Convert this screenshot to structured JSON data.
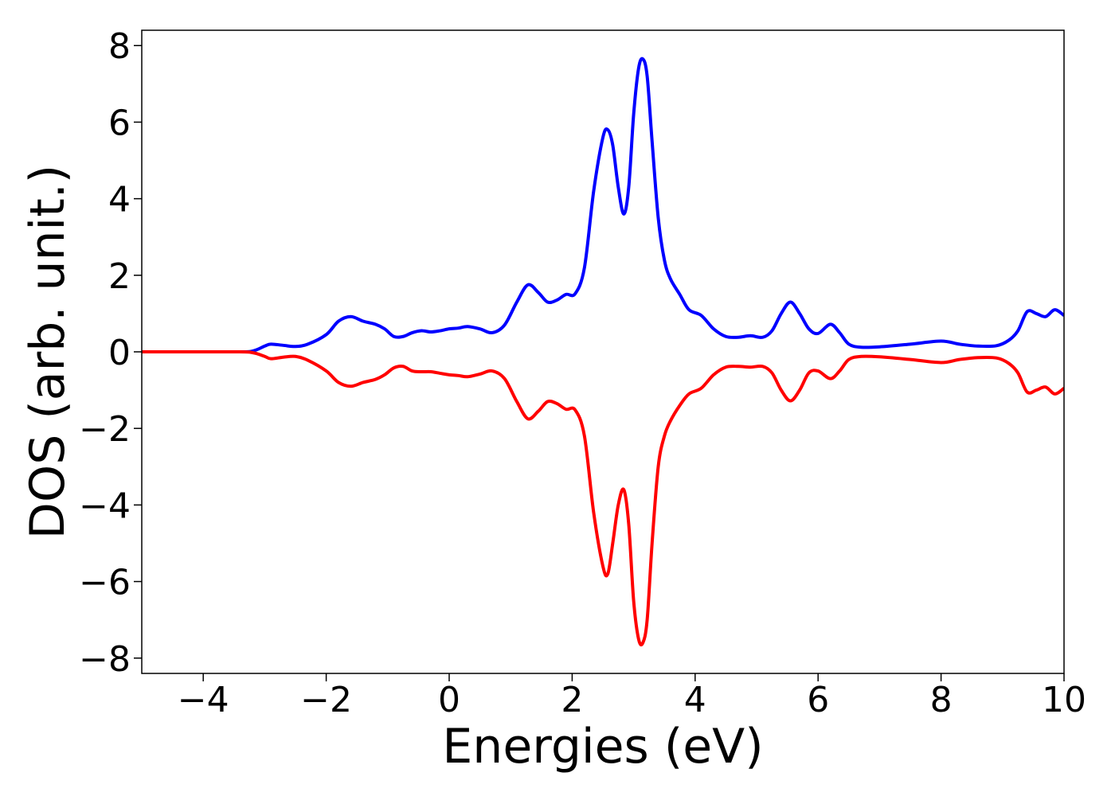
{
  "chart_data": {
    "type": "line",
    "title": "",
    "xlabel": "Energies (eV)",
    "ylabel": "DOS (arb. unit.)",
    "xlim": [
      -5,
      10
    ],
    "ylim": [
      -8.4,
      8.4
    ],
    "grid": false,
    "legend": "none",
    "x_ticks": [
      -4,
      -2,
      0,
      2,
      4,
      6,
      8,
      10
    ],
    "x_tick_labels": [
      "−4",
      "−2",
      "0",
      "2",
      "4",
      "6",
      "8",
      "10"
    ],
    "y_ticks": [
      8,
      6,
      4,
      2,
      0,
      -2,
      -4,
      -6,
      -8
    ],
    "y_tick_labels": [
      "8",
      "6",
      "4",
      "2",
      "0",
      "−2",
      "−4",
      "−6",
      "−8"
    ],
    "series": [
      {
        "color": "#0000ff",
        "x": [
          -5,
          -3.5,
          -3.2,
          -3.0,
          -2.9,
          -2.7,
          -2.5,
          -2.3,
          -2.0,
          -1.8,
          -1.6,
          -1.4,
          -1.2,
          -1.05,
          -0.9,
          -0.75,
          -0.6,
          -0.45,
          -0.3,
          -0.15,
          0.0,
          0.15,
          0.3,
          0.5,
          0.7,
          0.9,
          1.1,
          1.28,
          1.45,
          1.6,
          1.75,
          1.9,
          2.05,
          2.2,
          2.35,
          2.5,
          2.58,
          2.66,
          2.75,
          2.84,
          2.92,
          3.0,
          3.08,
          3.15,
          3.22,
          3.3,
          3.4,
          3.5,
          3.6,
          3.75,
          3.9,
          4.1,
          4.3,
          4.5,
          4.7,
          4.9,
          5.1,
          5.25,
          5.4,
          5.55,
          5.7,
          5.85,
          6.0,
          6.2,
          6.35,
          6.5,
          6.7,
          7.0,
          7.5,
          8.0,
          8.3,
          8.6,
          8.9,
          9.1,
          9.25,
          9.4,
          9.55,
          9.7,
          9.85,
          10.0
        ],
        "y": [
          0,
          0,
          0.02,
          0.15,
          0.2,
          0.17,
          0.14,
          0.2,
          0.45,
          0.8,
          0.92,
          0.8,
          0.72,
          0.6,
          0.4,
          0.4,
          0.5,
          0.55,
          0.52,
          0.55,
          0.6,
          0.62,
          0.66,
          0.6,
          0.5,
          0.7,
          1.3,
          1.75,
          1.55,
          1.3,
          1.35,
          1.5,
          1.52,
          2.2,
          4.2,
          5.6,
          5.8,
          5.4,
          4.3,
          3.6,
          4.3,
          6.2,
          7.4,
          7.65,
          7.2,
          5.5,
          3.5,
          2.4,
          1.9,
          1.5,
          1.1,
          0.95,
          0.6,
          0.4,
          0.38,
          0.42,
          0.38,
          0.55,
          1.0,
          1.3,
          1.0,
          0.6,
          0.48,
          0.72,
          0.5,
          0.2,
          0.12,
          0.13,
          0.2,
          0.28,
          0.2,
          0.15,
          0.16,
          0.3,
          0.55,
          1.05,
          1.0,
          0.92,
          1.1,
          0.95
        ]
      },
      {
        "color": "#ff0000",
        "x": [
          -5,
          -3.5,
          -3.2,
          -3.0,
          -2.9,
          -2.7,
          -2.5,
          -2.3,
          -2.0,
          -1.8,
          -1.6,
          -1.4,
          -1.2,
          -1.05,
          -0.9,
          -0.75,
          -0.6,
          -0.45,
          -0.3,
          -0.15,
          0.0,
          0.15,
          0.3,
          0.5,
          0.7,
          0.9,
          1.1,
          1.28,
          1.45,
          1.6,
          1.75,
          1.9,
          2.05,
          2.2,
          2.35,
          2.5,
          2.58,
          2.66,
          2.75,
          2.84,
          2.92,
          3.0,
          3.08,
          3.15,
          3.22,
          3.3,
          3.4,
          3.5,
          3.6,
          3.75,
          3.9,
          4.1,
          4.3,
          4.5,
          4.7,
          4.9,
          5.1,
          5.25,
          5.4,
          5.55,
          5.7,
          5.85,
          6.0,
          6.2,
          6.35,
          6.5,
          6.7,
          7.0,
          7.5,
          8.0,
          8.3,
          8.6,
          8.9,
          9.1,
          9.25,
          9.4,
          9.55,
          9.7,
          9.85,
          10.0
        ],
        "y": [
          0,
          0,
          -0.02,
          -0.12,
          -0.18,
          -0.14,
          -0.12,
          -0.22,
          -0.5,
          -0.8,
          -0.9,
          -0.8,
          -0.72,
          -0.6,
          -0.42,
          -0.38,
          -0.5,
          -0.52,
          -0.52,
          -0.56,
          -0.6,
          -0.62,
          -0.65,
          -0.58,
          -0.5,
          -0.7,
          -1.3,
          -1.75,
          -1.55,
          -1.3,
          -1.35,
          -1.5,
          -1.52,
          -2.2,
          -4.2,
          -5.6,
          -5.8,
          -5.0,
          -4.0,
          -3.6,
          -4.5,
          -6.5,
          -7.5,
          -7.6,
          -7.0,
          -5.0,
          -3.0,
          -2.2,
          -1.8,
          -1.4,
          -1.1,
          -0.95,
          -0.6,
          -0.4,
          -0.38,
          -0.4,
          -0.38,
          -0.55,
          -1.0,
          -1.28,
          -1.0,
          -0.55,
          -0.5,
          -0.7,
          -0.5,
          -0.2,
          -0.12,
          -0.13,
          -0.2,
          -0.28,
          -0.2,
          -0.15,
          -0.16,
          -0.3,
          -0.55,
          -1.05,
          -1.0,
          -0.92,
          -1.1,
          -0.95
        ]
      }
    ]
  }
}
